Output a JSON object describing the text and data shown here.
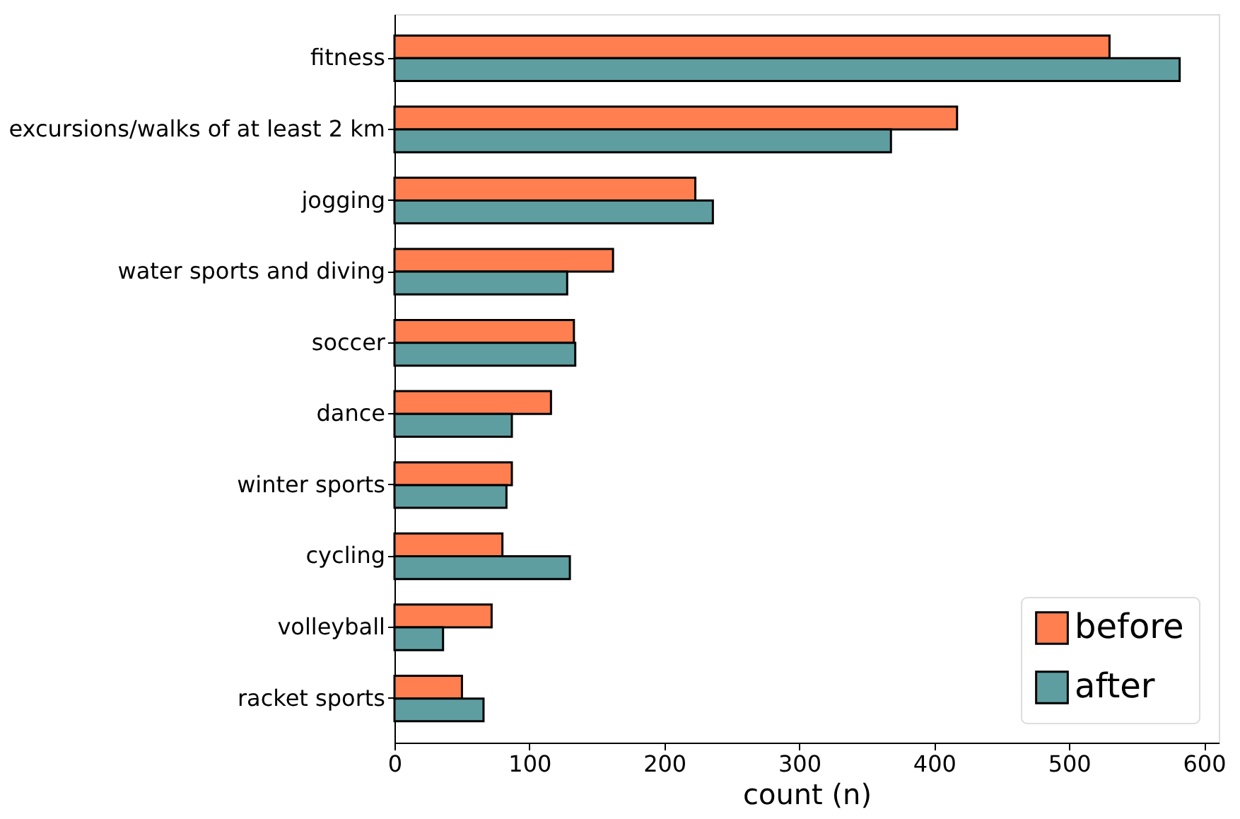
{
  "chart_data": {
    "type": "bar",
    "orientation": "horizontal",
    "xlabel": "count (n)",
    "categories": [
      "fitness",
      "excursions/walks of at least 2 km",
      "jogging",
      "water sports and diving",
      "soccer",
      "dance",
      "winter sports",
      "cycling",
      "volleyball",
      "racket sports"
    ],
    "series": [
      {
        "name": "before",
        "color": "#ff7f50",
        "values": [
          530,
          417,
          223,
          162,
          133,
          116,
          87,
          80,
          72,
          50
        ]
      },
      {
        "name": "after",
        "color": "#5f9ea0",
        "values": [
          582,
          368,
          236,
          128,
          134,
          87,
          83,
          130,
          36,
          66
        ]
      }
    ],
    "xlim": [
      0,
      611
    ],
    "xticks": [
      0,
      100,
      200,
      300,
      400,
      500,
      600
    ],
    "grid": false,
    "legend": "bottom right"
  }
}
